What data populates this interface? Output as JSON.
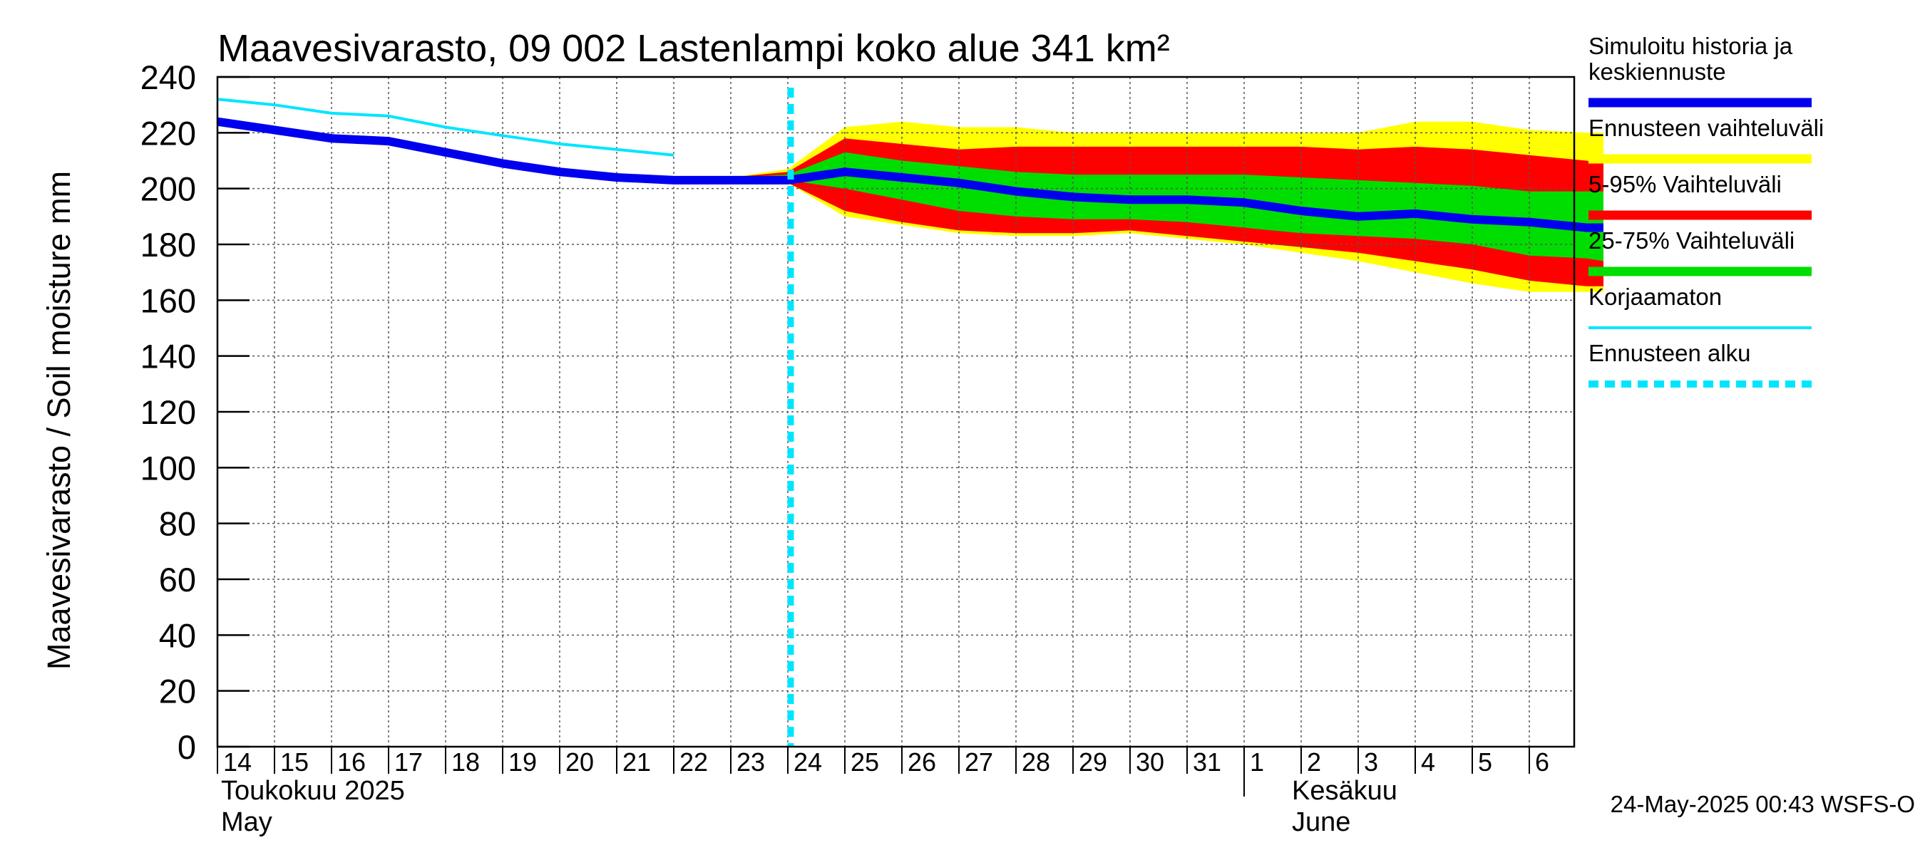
{
  "chart_data": {
    "type": "area",
    "title": "Maavesivarasto, 09 002 Lastenlampi koko alue 341 km²",
    "ylabel": "Maavesivarasto / Soil moisture   mm",
    "ylim": [
      0,
      240
    ],
    "yticks": [
      "0",
      "20",
      "40",
      "60",
      "80",
      "100",
      "120",
      "140",
      "160",
      "180",
      "200",
      "220",
      "240"
    ],
    "xlim": [
      0,
      24.3
    ],
    "xticks": [
      "14",
      "15",
      "16",
      "17",
      "18",
      "19",
      "20",
      "21",
      "22",
      "23",
      "24",
      "25",
      "26",
      "27",
      "28",
      "29",
      "30",
      "31",
      "1",
      "2",
      "3",
      "4",
      "5",
      "6"
    ],
    "x_month_labels": {
      "may_fi": "Toukokuu  2025",
      "may_en": "May",
      "june_fi": "Kesäkuu",
      "june_en": "June"
    },
    "month_divider_x": 18,
    "forecast_start_x": 10.05,
    "grid": true,
    "series": [
      {
        "name": "Ennusteen vaihteluväli",
        "kind": "band",
        "color": "#ffff00",
        "x": [
          9,
          10,
          11,
          12,
          13,
          14,
          15,
          16,
          17,
          18,
          19,
          20,
          21,
          22,
          23,
          24,
          24.3
        ],
        "upper": [
          204,
          207,
          222,
          224,
          222,
          222,
          220,
          220,
          220,
          220,
          220,
          220,
          224,
          224,
          221,
          220,
          220
        ],
        "lower": [
          203,
          202,
          190,
          187,
          184,
          183,
          183,
          184,
          182,
          180,
          177,
          174,
          170,
          166,
          163,
          163,
          163
        ]
      },
      {
        "name": "5-95% Vaihteluväli",
        "kind": "band",
        "color": "#ff0000",
        "x": [
          9,
          10,
          11,
          12,
          13,
          14,
          15,
          16,
          17,
          18,
          19,
          20,
          21,
          22,
          23,
          24,
          24.3
        ],
        "upper": [
          204,
          206,
          218,
          216,
          214,
          215,
          215,
          215,
          215,
          215,
          215,
          214,
          215,
          214,
          212,
          210,
          209
        ],
        "lower": [
          203,
          202,
          192,
          188,
          185,
          184,
          184,
          185,
          183,
          181,
          179,
          177,
          174,
          171,
          167,
          165,
          165
        ]
      },
      {
        "name": "25-75% Vaihteluväli",
        "kind": "band",
        "color": "#00dd00",
        "x": [
          9,
          10,
          11,
          12,
          13,
          14,
          15,
          16,
          17,
          18,
          19,
          20,
          21,
          22,
          23,
          24,
          24.3
        ],
        "upper": [
          204,
          205,
          213,
          210,
          208,
          206,
          205,
          205,
          205,
          205,
          204,
          203,
          202,
          201,
          199,
          199,
          199
        ],
        "lower": [
          203,
          203,
          200,
          196,
          192,
          190,
          189,
          189,
          188,
          186,
          184,
          183,
          182,
          180,
          176,
          175,
          174
        ]
      },
      {
        "name": "Korjaamaton",
        "kind": "line",
        "color": "#00e5ff",
        "width": 4,
        "x": [
          0,
          1,
          2,
          3,
          4,
          5,
          6,
          7,
          8
        ],
        "values": [
          232,
          230,
          227,
          226,
          222,
          219,
          216,
          214,
          212
        ]
      },
      {
        "name": "Simuloitu historia ja keskiennuste",
        "kind": "line",
        "color": "#0000ee",
        "width": 12,
        "x": [
          0,
          1,
          2,
          3,
          4,
          5,
          6,
          7,
          8,
          9,
          10,
          11,
          12,
          13,
          14,
          15,
          16,
          17,
          18,
          19,
          20,
          21,
          22,
          23,
          24,
          24.3
        ],
        "values": [
          224,
          221,
          218,
          217,
          213,
          209,
          206,
          204,
          203,
          203,
          203,
          206,
          204,
          202,
          199,
          197,
          196,
          196,
          195,
          192,
          190,
          191,
          189,
          188,
          186,
          186
        ]
      }
    ],
    "legend": {
      "position": "right",
      "entries": [
        {
          "label_lines": [
            "Simuloitu historia ja",
            "keskiennuste"
          ],
          "color": "#0000ee",
          "style": "thick"
        },
        {
          "label_lines": [
            "Ennusteen vaihteluväli"
          ],
          "color": "#ffff00",
          "style": "thick"
        },
        {
          "label_lines": [
            "5-95% Vaihteluväli"
          ],
          "color": "#ff0000",
          "style": "thick"
        },
        {
          "label_lines": [
            "25-75% Vaihteluväli"
          ],
          "color": "#00dd00",
          "style": "thick"
        },
        {
          "label_lines": [
            "Korjaamaton"
          ],
          "color": "#00e5ff",
          "style": "thin"
        },
        {
          "label_lines": [
            "Ennusteen alku"
          ],
          "color": "#00e5ff",
          "style": "dashed"
        }
      ]
    }
  },
  "footer": {
    "timestamp": "24-May-2025 00:43 WSFS-O"
  }
}
